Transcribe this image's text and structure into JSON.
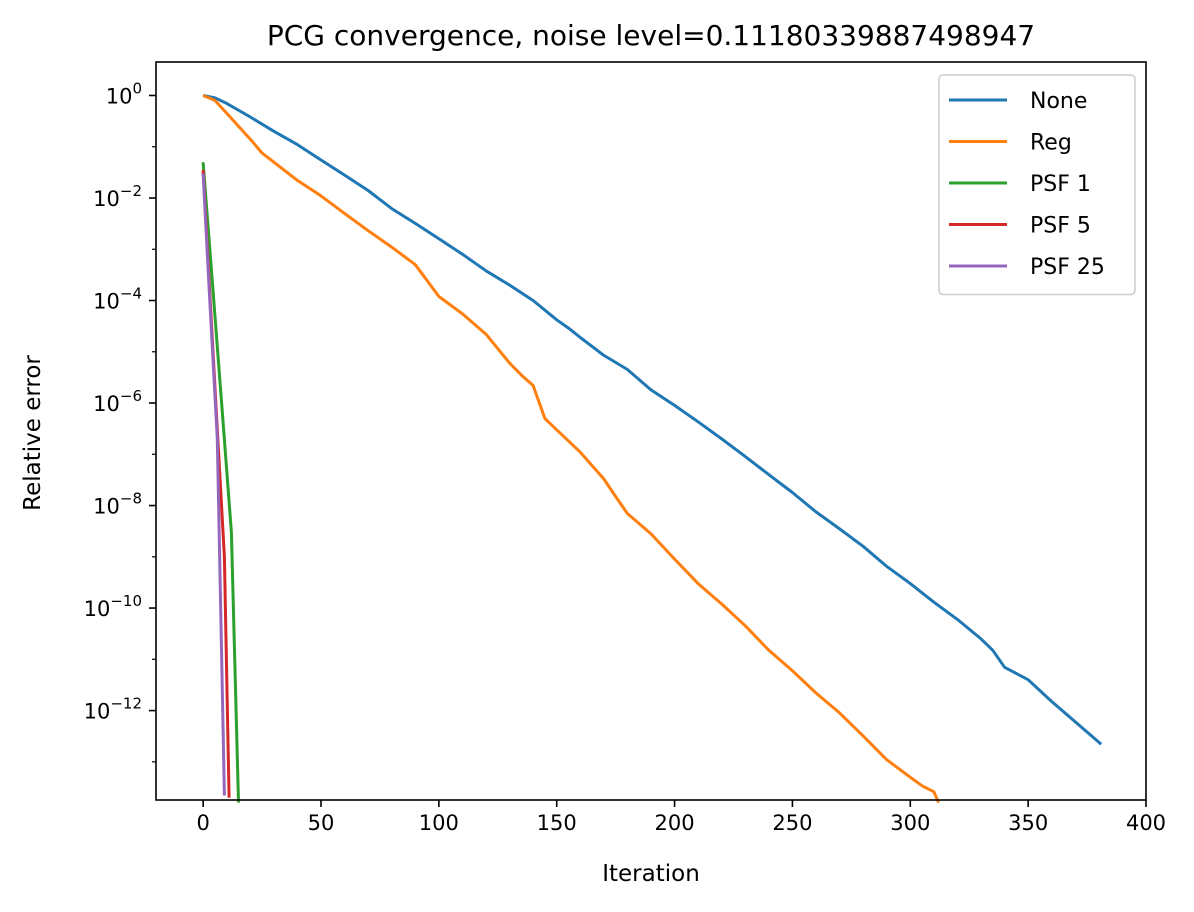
{
  "chart_data": {
    "type": "line",
    "title": "PCG convergence, noise level=0.11180339887498947",
    "xlabel": "Iteration",
    "ylabel": "Relative error",
    "yscale": "log",
    "xlim": [
      -20,
      400
    ],
    "ylim": [
      1.8e-14,
      4.5
    ],
    "grid": false,
    "legend_position": "top-right",
    "x_ticks": [
      0,
      50,
      100,
      150,
      200,
      250,
      300,
      350,
      400
    ],
    "x_tick_labels": [
      "0",
      "50",
      "100",
      "150",
      "200",
      "250",
      "300",
      "350",
      "400"
    ],
    "y_ticks": [
      1,
      0.01,
      0.0001,
      1e-06,
      1e-08,
      1e-10,
      1e-12
    ],
    "y_tick_labels": [
      {
        "base": "10",
        "exp": "0"
      },
      {
        "base": "10",
        "exp": "−2"
      },
      {
        "base": "10",
        "exp": "−4"
      },
      {
        "base": "10",
        "exp": "−6"
      },
      {
        "base": "10",
        "exp": "−8"
      },
      {
        "base": "10",
        "exp": "−10"
      },
      {
        "base": "10",
        "exp": "−12"
      }
    ],
    "series": [
      {
        "name": "None",
        "color": "#1f77b4",
        "x": [
          0,
          5,
          10,
          20,
          30,
          40,
          50,
          60,
          70,
          80,
          90,
          100,
          110,
          120,
          130,
          140,
          150,
          155,
          160,
          170,
          180,
          190,
          200,
          210,
          220,
          230,
          240,
          250,
          260,
          270,
          280,
          290,
          300,
          310,
          320,
          330,
          335,
          340,
          350,
          360,
          370,
          381
        ],
        "y": [
          1.0,
          0.9,
          0.7,
          0.38,
          0.2,
          0.11,
          0.055,
          0.028,
          0.014,
          0.0062,
          0.0032,
          0.0016,
          0.0008,
          0.00038,
          0.0002,
          0.0001,
          4.2e-05,
          2.9e-05,
          1.9e-05,
          8.5e-06,
          4.5e-06,
          1.8e-06,
          9e-07,
          4.3e-07,
          2e-07,
          9e-08,
          4e-08,
          1.8e-08,
          7.5e-09,
          3.5e-09,
          1.6e-09,
          6.5e-10,
          3e-10,
          1.3e-10,
          6e-11,
          2.5e-11,
          1.5e-11,
          7e-12,
          4e-12,
          1.5e-12,
          6e-13,
          2.2e-13
        ]
      },
      {
        "name": "Reg",
        "color": "#ff7f0e",
        "x": [
          0,
          5,
          10,
          15,
          20,
          25,
          30,
          40,
          50,
          60,
          70,
          80,
          90,
          100,
          110,
          120,
          130,
          135,
          140,
          145,
          150,
          160,
          170,
          175,
          180,
          190,
          200,
          210,
          220,
          230,
          240,
          250,
          260,
          270,
          280,
          290,
          300,
          305,
          310,
          312
        ],
        "y": [
          1.0,
          0.8,
          0.45,
          0.25,
          0.14,
          0.075,
          0.05,
          0.022,
          0.011,
          0.005,
          0.0023,
          0.0011,
          0.0005,
          0.00012,
          5.5e-05,
          2.2e-05,
          6e-06,
          3.5e-06,
          2.2e-06,
          5e-07,
          3e-07,
          1.1e-07,
          3.3e-08,
          1.5e-08,
          7e-09,
          2.8e-09,
          9e-10,
          3e-10,
          1.2e-10,
          4.5e-11,
          1.5e-11,
          6e-12,
          2.2e-12,
          9e-13,
          3.2e-13,
          1.1e-13,
          5e-14,
          3.4e-14,
          2.6e-14,
          1.6e-14
        ]
      },
      {
        "name": "PSF 1",
        "color": "#2ca02c",
        "x": [
          0,
          4,
          8,
          12,
          15
        ],
        "y": [
          0.05,
          0.0002,
          8e-07,
          3e-09,
          1.6e-14
        ]
      },
      {
        "name": "PSF 5",
        "color": "#d62728",
        "x": [
          0,
          3,
          6,
          9,
          11
        ],
        "y": [
          0.035,
          0.0001,
          3e-07,
          1e-09,
          2e-14
        ]
      },
      {
        "name": "PSF 25",
        "color": "#9467bd",
        "x": [
          0,
          3,
          6,
          9
        ],
        "y": [
          0.03,
          7e-05,
          2e-07,
          2.2e-14
        ]
      }
    ]
  }
}
